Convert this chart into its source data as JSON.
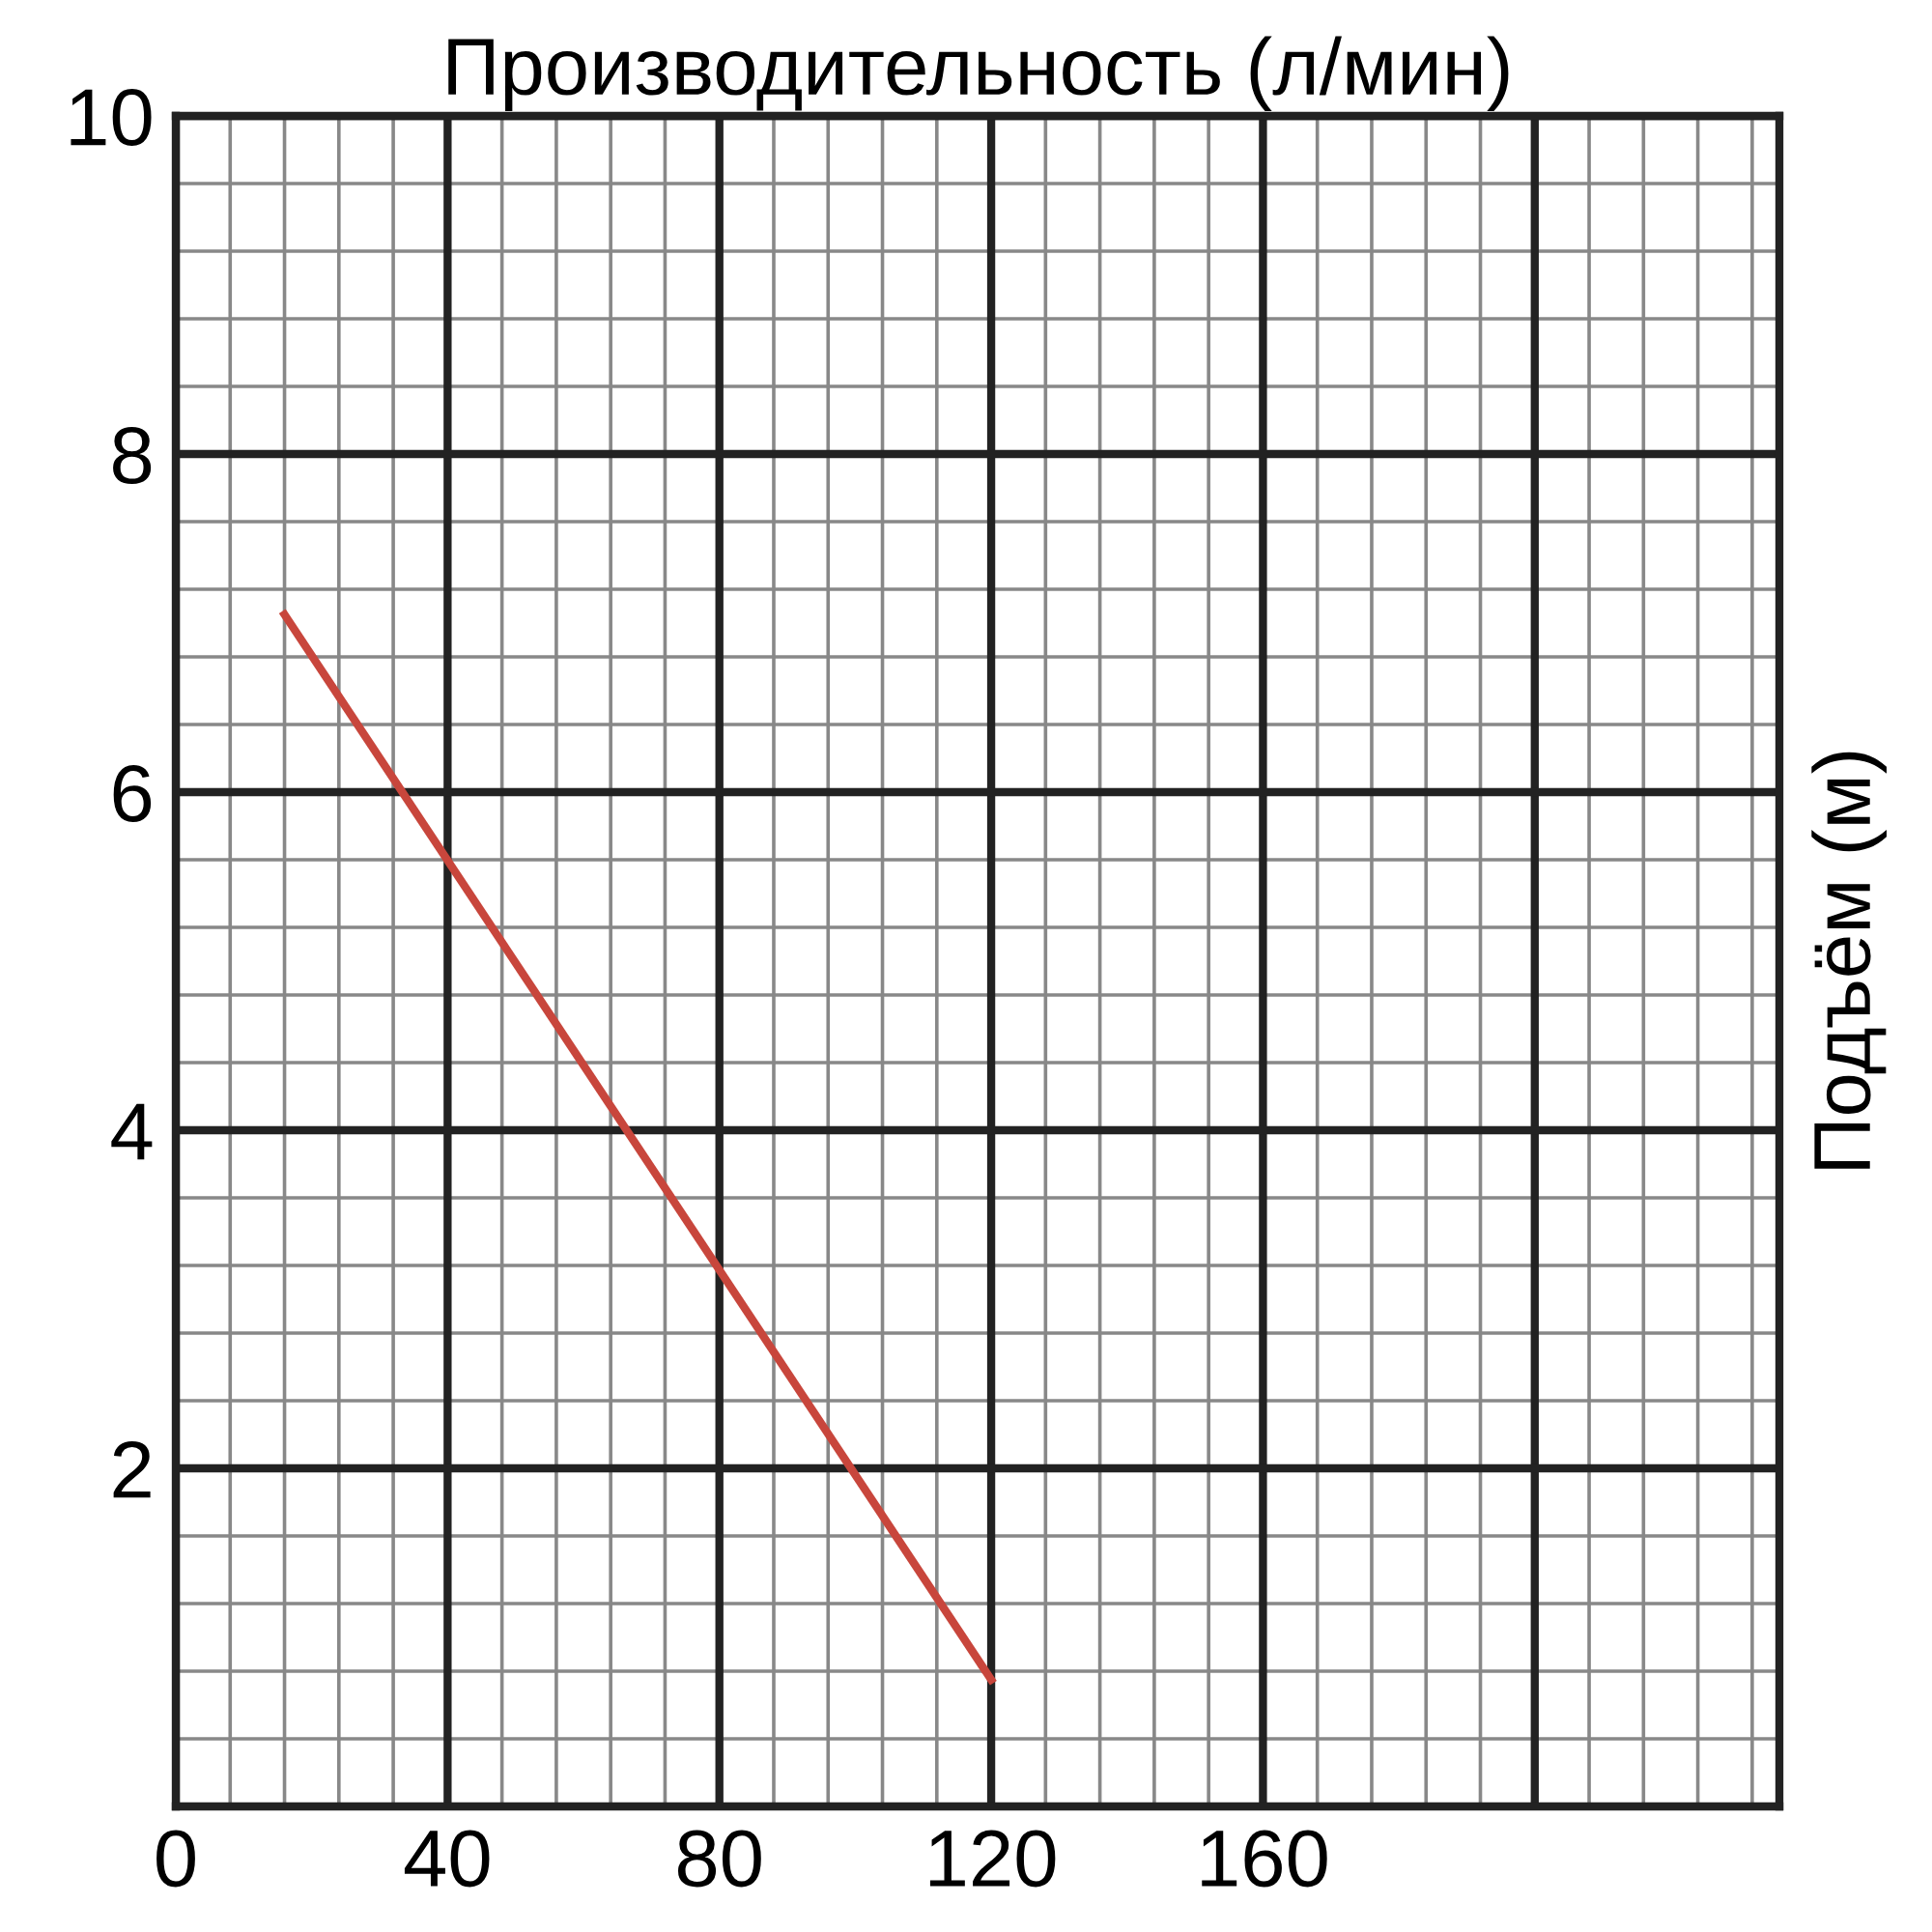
{
  "chart_data": {
    "type": "line",
    "title": "Производительность (л/мин)",
    "ylabel": "Подъём (м)",
    "x": [
      16,
      120
    ],
    "series": [
      {
        "color": "#c8463c",
        "values": [
          7.05,
          0.75
        ]
      }
    ],
    "xlim": [
      0,
      236
    ],
    "xticks": [
      0,
      40,
      80,
      120,
      160,
      {
        "value": 200,
        "label": null
      }
    ],
    "ylim": [
      0,
      10
    ],
    "yticks": [
      2,
      4,
      6,
      8,
      10
    ],
    "grid": true,
    "marker": "none",
    "line_style": "solid"
  }
}
